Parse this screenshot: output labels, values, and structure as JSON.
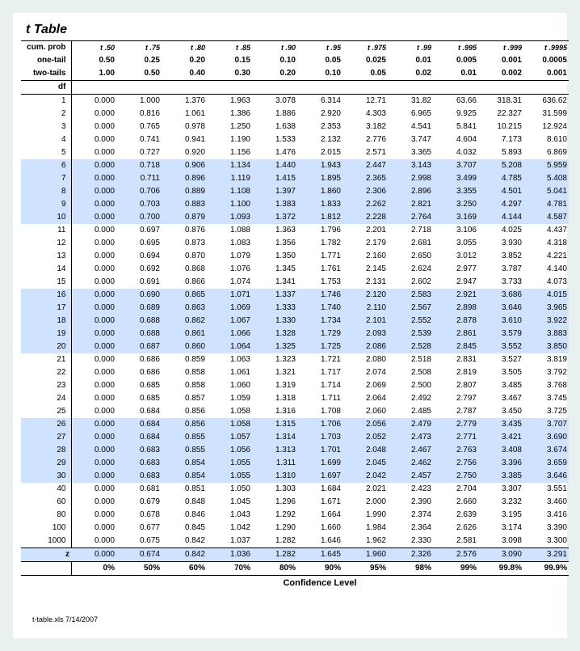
{
  "title": "t Table",
  "header_labels": {
    "cum_prob": "cum. prob",
    "one_tail": "one-tail",
    "two_tails": "two-tails",
    "df": "df",
    "z": "z",
    "confidence": "Confidence Level"
  },
  "t_sub": [
    "t .50",
    "t .75",
    "t .80",
    "t .85",
    "t .90",
    "t .95",
    "t .975",
    "t .99",
    "t .995",
    "t .999",
    "t .9995"
  ],
  "one_tail_vals": [
    "0.50",
    "0.25",
    "0.20",
    "0.15",
    "0.10",
    "0.05",
    "0.025",
    "0.01",
    "0.005",
    "0.001",
    "0.0005"
  ],
  "two_tail_vals": [
    "1.00",
    "0.50",
    "0.40",
    "0.30",
    "0.20",
    "0.10",
    "0.05",
    "0.02",
    "0.01",
    "0.002",
    "0.001"
  ],
  "df_vals": [
    "1",
    "2",
    "3",
    "4",
    "5",
    "6",
    "7",
    "8",
    "9",
    "10",
    "11",
    "12",
    "13",
    "14",
    "15",
    "16",
    "17",
    "18",
    "19",
    "20",
    "21",
    "22",
    "23",
    "24",
    "25",
    "26",
    "27",
    "28",
    "29",
    "30",
    "40",
    "60",
    "80",
    "100",
    "1000"
  ],
  "rows": [
    [
      "0.000",
      "1.000",
      "1.376",
      "1.963",
      "3.078",
      "6.314",
      "12.71",
      "31.82",
      "63.66",
      "318.31",
      "636.62"
    ],
    [
      "0.000",
      "0.816",
      "1.061",
      "1.386",
      "1.886",
      "2.920",
      "4.303",
      "6.965",
      "9.925",
      "22.327",
      "31.599"
    ],
    [
      "0.000",
      "0.765",
      "0.978",
      "1.250",
      "1.638",
      "2.353",
      "3.182",
      "4.541",
      "5.841",
      "10.215",
      "12.924"
    ],
    [
      "0.000",
      "0.741",
      "0.941",
      "1.190",
      "1.533",
      "2.132",
      "2.776",
      "3.747",
      "4.604",
      "7.173",
      "8.610"
    ],
    [
      "0.000",
      "0.727",
      "0.920",
      "1.156",
      "1.476",
      "2.015",
      "2.571",
      "3.365",
      "4.032",
      "5.893",
      "6.869"
    ],
    [
      "0.000",
      "0.718",
      "0.906",
      "1.134",
      "1.440",
      "1.943",
      "2.447",
      "3.143",
      "3.707",
      "5.208",
      "5.959"
    ],
    [
      "0.000",
      "0.711",
      "0.896",
      "1.119",
      "1.415",
      "1.895",
      "2.365",
      "2.998",
      "3.499",
      "4.785",
      "5.408"
    ],
    [
      "0.000",
      "0.706",
      "0.889",
      "1.108",
      "1.397",
      "1.860",
      "2.306",
      "2.896",
      "3.355",
      "4.501",
      "5.041"
    ],
    [
      "0.000",
      "0.703",
      "0.883",
      "1.100",
      "1.383",
      "1.833",
      "2.262",
      "2.821",
      "3.250",
      "4.297",
      "4.781"
    ],
    [
      "0.000",
      "0.700",
      "0.879",
      "1.093",
      "1.372",
      "1.812",
      "2.228",
      "2.764",
      "3.169",
      "4.144",
      "4.587"
    ],
    [
      "0.000",
      "0.697",
      "0.876",
      "1.088",
      "1.363",
      "1.796",
      "2.201",
      "2.718",
      "3.106",
      "4.025",
      "4.437"
    ],
    [
      "0.000",
      "0.695",
      "0.873",
      "1.083",
      "1.356",
      "1.782",
      "2.179",
      "2.681",
      "3.055",
      "3.930",
      "4.318"
    ],
    [
      "0.000",
      "0.694",
      "0.870",
      "1.079",
      "1.350",
      "1.771",
      "2.160",
      "2.650",
      "3.012",
      "3.852",
      "4.221"
    ],
    [
      "0.000",
      "0.692",
      "0.868",
      "1.076",
      "1.345",
      "1.761",
      "2.145",
      "2.624",
      "2.977",
      "3.787",
      "4.140"
    ],
    [
      "0.000",
      "0.691",
      "0.866",
      "1.074",
      "1.341",
      "1.753",
      "2.131",
      "2.602",
      "2.947",
      "3.733",
      "4.073"
    ],
    [
      "0.000",
      "0.690",
      "0.865",
      "1.071",
      "1.337",
      "1.746",
      "2.120",
      "2.583",
      "2.921",
      "3.686",
      "4.015"
    ],
    [
      "0.000",
      "0.689",
      "0.863",
      "1.069",
      "1.333",
      "1.740",
      "2.110",
      "2.567",
      "2.898",
      "3.646",
      "3.965"
    ],
    [
      "0.000",
      "0.688",
      "0.862",
      "1.067",
      "1.330",
      "1.734",
      "2.101",
      "2.552",
      "2.878",
      "3.610",
      "3.922"
    ],
    [
      "0.000",
      "0.688",
      "0.861",
      "1.066",
      "1.328",
      "1.729",
      "2.093",
      "2.539",
      "2.861",
      "3.579",
      "3.883"
    ],
    [
      "0.000",
      "0.687",
      "0.860",
      "1.064",
      "1.325",
      "1.725",
      "2.086",
      "2.528",
      "2.845",
      "3.552",
      "3.850"
    ],
    [
      "0.000",
      "0.686",
      "0.859",
      "1.063",
      "1.323",
      "1.721",
      "2.080",
      "2.518",
      "2.831",
      "3.527",
      "3.819"
    ],
    [
      "0.000",
      "0.686",
      "0.858",
      "1.061",
      "1.321",
      "1.717",
      "2.074",
      "2.508",
      "2.819",
      "3.505",
      "3.792"
    ],
    [
      "0.000",
      "0.685",
      "0.858",
      "1.060",
      "1.319",
      "1.714",
      "2.069",
      "2.500",
      "2.807",
      "3.485",
      "3.768"
    ],
    [
      "0.000",
      "0.685",
      "0.857",
      "1.059",
      "1.318",
      "1.711",
      "2.064",
      "2.492",
      "2.797",
      "3.467",
      "3.745"
    ],
    [
      "0.000",
      "0.684",
      "0.856",
      "1.058",
      "1.316",
      "1.708",
      "2.060",
      "2.485",
      "2.787",
      "3.450",
      "3.725"
    ],
    [
      "0.000",
      "0.684",
      "0.856",
      "1.058",
      "1.315",
      "1.706",
      "2.056",
      "2.479",
      "2.779",
      "3.435",
      "3.707"
    ],
    [
      "0.000",
      "0.684",
      "0.855",
      "1.057",
      "1.314",
      "1.703",
      "2.052",
      "2.473",
      "2.771",
      "3.421",
      "3.690"
    ],
    [
      "0.000",
      "0.683",
      "0.855",
      "1.056",
      "1.313",
      "1.701",
      "2.048",
      "2.467",
      "2.763",
      "3.408",
      "3.674"
    ],
    [
      "0.000",
      "0.683",
      "0.854",
      "1.055",
      "1.311",
      "1.699",
      "2.045",
      "2.462",
      "2.756",
      "3.396",
      "3.659"
    ],
    [
      "0.000",
      "0.683",
      "0.854",
      "1.055",
      "1.310",
      "1.697",
      "2.042",
      "2.457",
      "2.750",
      "3.385",
      "3.646"
    ],
    [
      "0.000",
      "0.681",
      "0.851",
      "1.050",
      "1.303",
      "1.684",
      "2.021",
      "2.423",
      "2.704",
      "3.307",
      "3.551"
    ],
    [
      "0.000",
      "0.679",
      "0.848",
      "1.045",
      "1.296",
      "1.671",
      "2.000",
      "2.390",
      "2.660",
      "3.232",
      "3.460"
    ],
    [
      "0.000",
      "0.678",
      "0.846",
      "1.043",
      "1.292",
      "1.664",
      "1.990",
      "2.374",
      "2.639",
      "3.195",
      "3.416"
    ],
    [
      "0.000",
      "0.677",
      "0.845",
      "1.042",
      "1.290",
      "1.660",
      "1.984",
      "2.364",
      "2.626",
      "3.174",
      "3.390"
    ],
    [
      "0.000",
      "0.675",
      "0.842",
      "1.037",
      "1.282",
      "1.646",
      "1.962",
      "2.330",
      "2.581",
      "3.098",
      "3.300"
    ]
  ],
  "z_row": [
    "0.000",
    "0.674",
    "0.842",
    "1.036",
    "1.282",
    "1.645",
    "1.960",
    "2.326",
    "2.576",
    "3.090",
    "3.291"
  ],
  "conf_row": [
    "0%",
    "50%",
    "60%",
    "70%",
    "80%",
    "90%",
    "95%",
    "98%",
    "99%",
    "99.8%",
    "99.9%"
  ],
  "alt_groups": [
    [
      5,
      9
    ],
    [
      15,
      19
    ],
    [
      25,
      29
    ]
  ],
  "footer": "t-table.xls 7/14/2007"
}
